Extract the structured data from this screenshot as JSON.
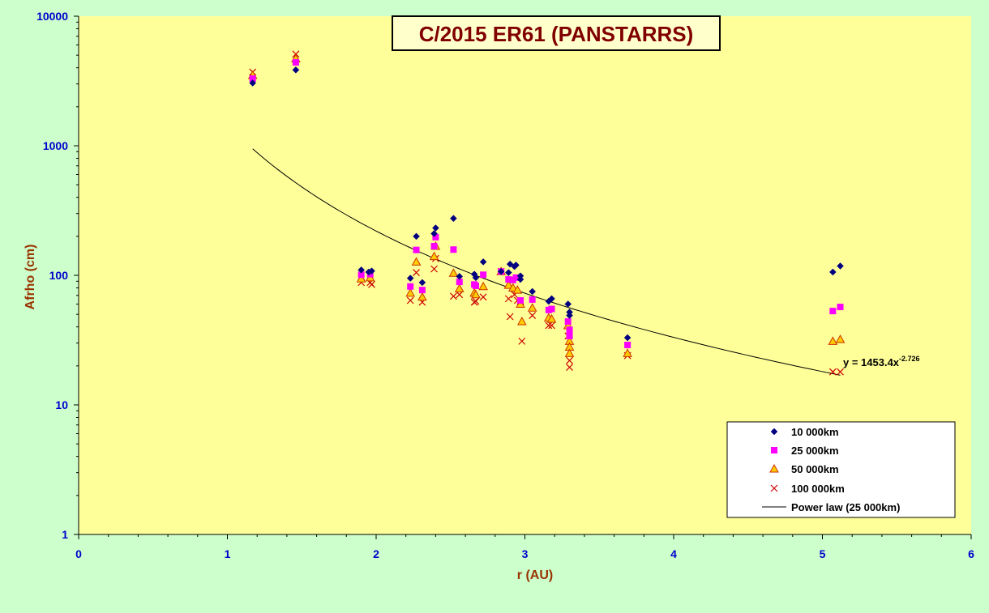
{
  "chart_data": {
    "type": "scatter",
    "title": "C/2015 ER61 (PANSTARRS)",
    "xlabel": "r (AU)",
    "ylabel": "Afrho (cm)",
    "x_scale": "linear",
    "y_scale": "log",
    "xlim": [
      0,
      6
    ],
    "ylim": [
      1,
      10000
    ],
    "x_ticks": [
      "0",
      "1",
      "2",
      "3",
      "4",
      "5",
      "6"
    ],
    "y_ticks": [
      "1",
      "10",
      "100",
      "1000",
      "10000"
    ],
    "grid": false,
    "legend_position": "bottom-right",
    "colors": {
      "plot_bg": "#ffff99",
      "outer_bg": "#ccffcc",
      "title_color": "#800000",
      "title_box_bg": "#ffffcc",
      "axis_label_color": "#993300",
      "tick_label_color": "#0000cc",
      "series1": "#000080",
      "series2": "#ff00ff",
      "series3_fill": "#ffcc00",
      "series3_stroke": "#cc3300",
      "series4": "#cc0000",
      "trend": "#000000"
    },
    "series": [
      {
        "name": "10 000km",
        "marker": "diamond",
        "points": [
          [
            1.17,
            3050
          ],
          [
            1.46,
            3850
          ],
          [
            1.9,
            110
          ],
          [
            1.95,
            106
          ],
          [
            1.97,
            108
          ],
          [
            2.23,
            95
          ],
          [
            2.27,
            200
          ],
          [
            2.31,
            88
          ],
          [
            2.39,
            210
          ],
          [
            2.4,
            232
          ],
          [
            2.52,
            275
          ],
          [
            2.56,
            98
          ],
          [
            2.66,
            102
          ],
          [
            2.67,
            96
          ],
          [
            2.72,
            127
          ],
          [
            2.84,
            107
          ],
          [
            2.89,
            105
          ],
          [
            2.9,
            122
          ],
          [
            2.93,
            117
          ],
          [
            2.94,
            120
          ],
          [
            2.97,
            99
          ],
          [
            2.97,
            93
          ],
          [
            3.05,
            75
          ],
          [
            3.16,
            63
          ],
          [
            3.18,
            66
          ],
          [
            3.29,
            60
          ],
          [
            3.3,
            52
          ],
          [
            3.3,
            49
          ],
          [
            3.69,
            33
          ],
          [
            5.07,
            106
          ],
          [
            5.12,
            118
          ]
        ]
      },
      {
        "name": "25 000km",
        "marker": "square",
        "points": [
          [
            1.17,
            3300
          ],
          [
            1.46,
            4400
          ],
          [
            1.9,
            101
          ],
          [
            1.96,
            102
          ],
          [
            2.23,
            82
          ],
          [
            2.27,
            157
          ],
          [
            2.31,
            77
          ],
          [
            2.39,
            168
          ],
          [
            2.4,
            197
          ],
          [
            2.52,
            158
          ],
          [
            2.56,
            89
          ],
          [
            2.66,
            85
          ],
          [
            2.67,
            83
          ],
          [
            2.72,
            101
          ],
          [
            2.84,
            107
          ],
          [
            2.89,
            93
          ],
          [
            2.92,
            92
          ],
          [
            2.94,
            96
          ],
          [
            2.97,
            64
          ],
          [
            3.05,
            65
          ],
          [
            3.16,
            54
          ],
          [
            3.18,
            55
          ],
          [
            3.29,
            44
          ],
          [
            3.3,
            38
          ],
          [
            3.3,
            34
          ],
          [
            3.69,
            29
          ],
          [
            5.07,
            53
          ],
          [
            5.12,
            57
          ]
        ]
      },
      {
        "name": "50 000km",
        "marker": "triangle",
        "points": [
          [
            1.17,
            3500
          ],
          [
            1.46,
            4700
          ],
          [
            1.9,
            94
          ],
          [
            1.96,
            96
          ],
          [
            2.23,
            73
          ],
          [
            2.27,
            127
          ],
          [
            2.31,
            68
          ],
          [
            2.39,
            140
          ],
          [
            2.4,
            168
          ],
          [
            2.52,
            104
          ],
          [
            2.56,
            79
          ],
          [
            2.66,
            73
          ],
          [
            2.67,
            71
          ],
          [
            2.72,
            82
          ],
          [
            2.84,
            107
          ],
          [
            2.89,
            84
          ],
          [
            2.92,
            80
          ],
          [
            2.95,
            77
          ],
          [
            2.97,
            60
          ],
          [
            2.98,
            44
          ],
          [
            3.05,
            56
          ],
          [
            3.16,
            47
          ],
          [
            3.18,
            46
          ],
          [
            3.29,
            41
          ],
          [
            3.3,
            31
          ],
          [
            3.3,
            28
          ],
          [
            3.3,
            25
          ],
          [
            3.69,
            25
          ],
          [
            5.07,
            31
          ],
          [
            5.12,
            32
          ]
        ]
      },
      {
        "name": "100 000km",
        "marker": "cross",
        "points": [
          [
            1.17,
            3700
          ],
          [
            1.46,
            5100
          ],
          [
            1.9,
            88
          ],
          [
            1.96,
            88
          ],
          [
            1.97,
            85
          ],
          [
            2.23,
            64
          ],
          [
            2.27,
            105
          ],
          [
            2.31,
            62
          ],
          [
            2.39,
            112
          ],
          [
            2.4,
            135
          ],
          [
            2.52,
            69
          ],
          [
            2.56,
            71
          ],
          [
            2.66,
            62
          ],
          [
            2.67,
            63
          ],
          [
            2.72,
            68
          ],
          [
            2.84,
            107
          ],
          [
            2.89,
            66
          ],
          [
            2.9,
            48
          ],
          [
            2.93,
            71
          ],
          [
            2.95,
            64
          ],
          [
            2.97,
            63
          ],
          [
            2.98,
            31
          ],
          [
            3.05,
            49
          ],
          [
            3.16,
            41
          ],
          [
            3.18,
            41
          ],
          [
            3.29,
            34
          ],
          [
            3.3,
            22
          ],
          [
            3.3,
            19.5
          ],
          [
            3.69,
            24
          ],
          [
            5.07,
            18
          ],
          [
            5.12,
            18
          ]
        ]
      }
    ],
    "trendline": {
      "name": "Power law (25 000km)",
      "type": "power",
      "coefficient": 1453.4,
      "exponent": -2.726,
      "x_range": [
        1.17,
        5.12
      ],
      "equation_prefix": "y = 1453.4x",
      "equation_exponent": "-2.726"
    }
  }
}
